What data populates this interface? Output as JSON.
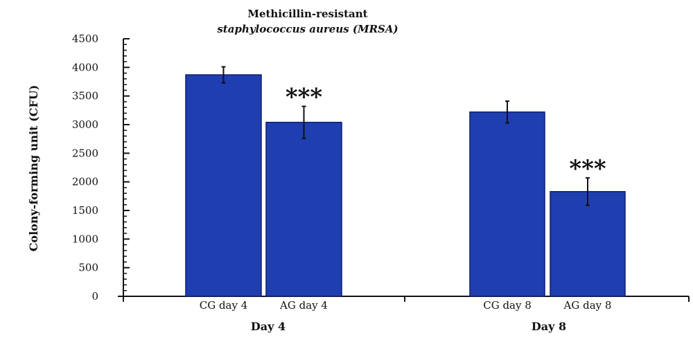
{
  "chart_data": {
    "type": "bar",
    "title": "Methicillin-resistant",
    "subtitle": "staphylococcus aureus (MRSA)",
    "ylabel": "Colony-forming unit (CFU)",
    "xlabel": "",
    "ylim": [
      0,
      4500
    ],
    "yticks": [
      "0",
      "500",
      "1000",
      "1500",
      "2000",
      "2500",
      "3000",
      "3500",
      "4000",
      "4500"
    ],
    "grid": false,
    "color": "#1f3fb0",
    "groups": [
      {
        "label": "Day 4",
        "bars": [
          {
            "label": "CG day 4",
            "value": 3870,
            "error": 140,
            "significance": ""
          },
          {
            "label": "AG day 4",
            "value": 3040,
            "error": 280,
            "significance": "***"
          }
        ]
      },
      {
        "label": "Day 8",
        "bars": [
          {
            "label": "CG day 8",
            "value": 3220,
            "error": 190,
            "significance": ""
          },
          {
            "label": "AG day 8",
            "value": 1830,
            "error": 240,
            "significance": "***"
          }
        ]
      }
    ]
  }
}
